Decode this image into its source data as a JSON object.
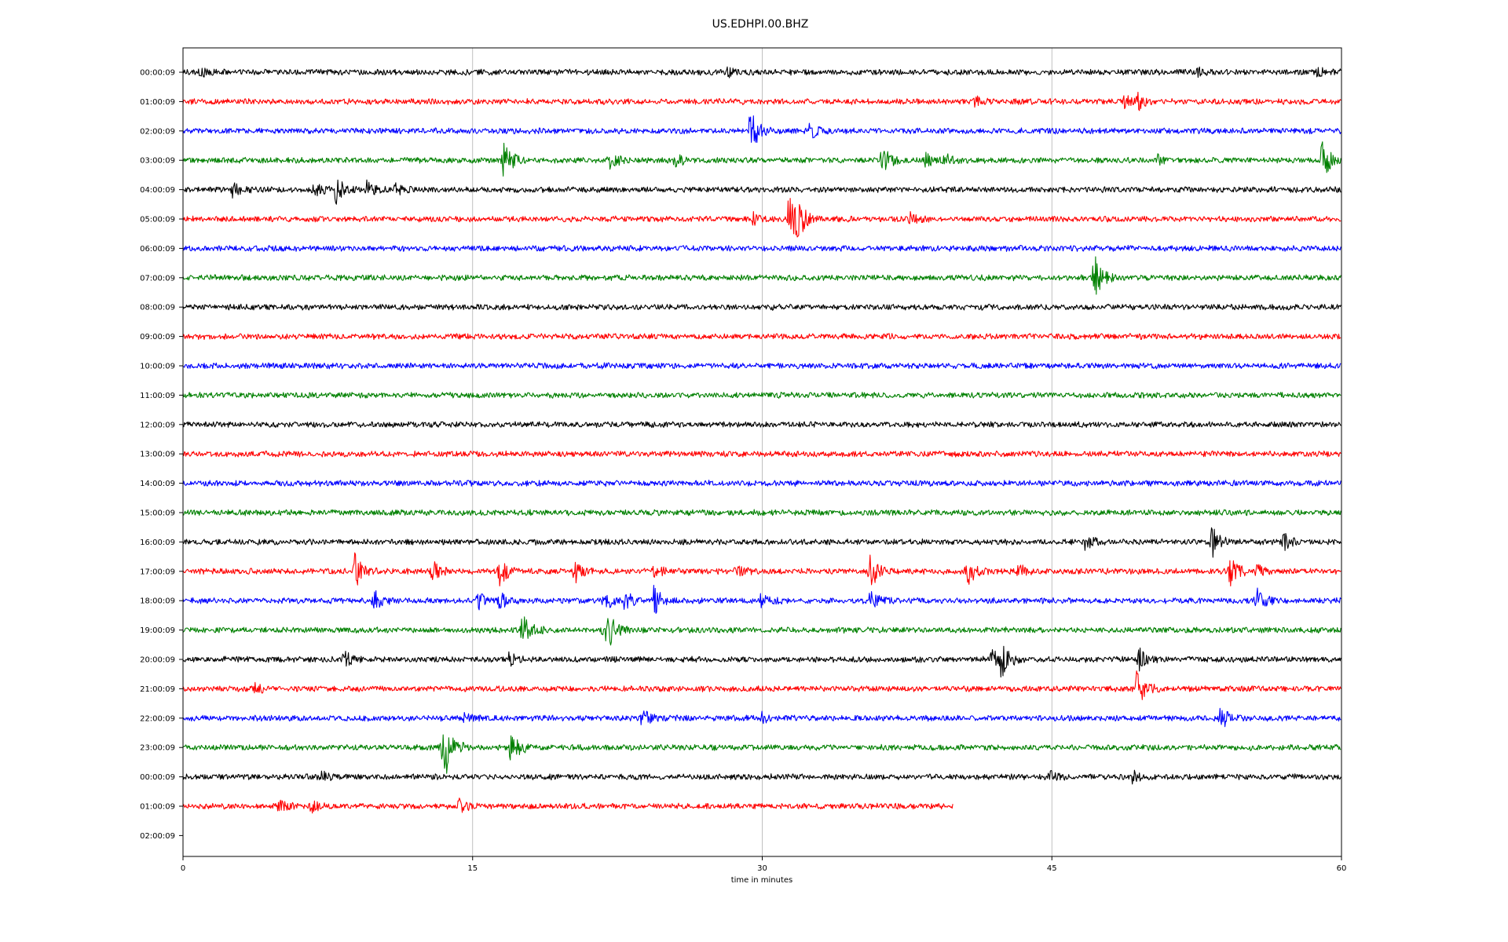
{
  "chart_data": {
    "type": "line",
    "title": "US.EDHPI.00.BHZ",
    "xlabel": "time in minutes",
    "ylabel": "",
    "xlim": [
      0,
      60
    ],
    "xticks": [
      0,
      15,
      30,
      45,
      60
    ],
    "vertical_grid": true,
    "colors": [
      "#000000",
      "#ff0000",
      "#0000ff",
      "#008000"
    ],
    "rows": [
      {
        "label": "00:00:09",
        "end": 60,
        "events": [
          [
            0.9,
            7
          ],
          [
            28.2,
            6
          ],
          [
            52.5,
            5
          ],
          [
            58.8,
            7
          ]
        ]
      },
      {
        "label": "01:00:09",
        "end": 60,
        "events": [
          [
            41.0,
            6
          ],
          [
            48.8,
            8
          ],
          [
            49.5,
            10
          ]
        ]
      },
      {
        "label": "02:00:09",
        "end": 60,
        "events": [
          [
            29.4,
            28
          ],
          [
            32.4,
            12
          ]
        ]
      },
      {
        "label": "03:00:09",
        "end": 60,
        "events": [
          [
            16.6,
            30
          ],
          [
            22.1,
            14
          ],
          [
            25.5,
            8
          ],
          [
            36.2,
            20
          ],
          [
            38.5,
            10
          ],
          [
            39.5,
            8
          ],
          [
            50.5,
            8
          ],
          [
            59.0,
            26
          ]
        ]
      },
      {
        "label": "04:00:09",
        "end": 60,
        "events": [
          [
            2.6,
            10
          ],
          [
            6.8,
            10
          ],
          [
            7.9,
            18
          ],
          [
            9.5,
            10
          ],
          [
            11.0,
            6
          ]
        ]
      },
      {
        "label": "05:00:09",
        "end": 60,
        "events": [
          [
            29.5,
            8
          ],
          [
            31.4,
            34
          ],
          [
            31.8,
            20
          ],
          [
            37.7,
            8
          ]
        ]
      },
      {
        "label": "06:00:09",
        "end": 60,
        "events": []
      },
      {
        "label": "07:00:09",
        "end": 60,
        "events": [
          [
            47.2,
            30
          ]
        ]
      },
      {
        "label": "08:00:09",
        "end": 60,
        "events": []
      },
      {
        "label": "09:00:09",
        "end": 60,
        "events": []
      },
      {
        "label": "10:00:09",
        "end": 60,
        "events": []
      },
      {
        "label": "11:00:09",
        "end": 60,
        "events": []
      },
      {
        "label": "12:00:09",
        "end": 60,
        "events": []
      },
      {
        "label": "13:00:09",
        "end": 60,
        "events": []
      },
      {
        "label": "14:00:09",
        "end": 60,
        "events": []
      },
      {
        "label": "15:00:09",
        "end": 60,
        "events": []
      },
      {
        "label": "16:00:09",
        "end": 60,
        "events": [
          [
            46.7,
            14
          ],
          [
            53.3,
            20
          ],
          [
            57.0,
            10
          ]
        ]
      },
      {
        "label": "17:00:09",
        "end": 60,
        "events": [
          [
            8.9,
            24
          ],
          [
            12.9,
            14
          ],
          [
            16.4,
            18
          ],
          [
            20.3,
            14
          ],
          [
            24.4,
            10
          ],
          [
            28.6,
            8
          ],
          [
            35.6,
            22
          ],
          [
            40.6,
            22
          ],
          [
            43.3,
            8
          ],
          [
            54.2,
            22
          ],
          [
            55.6,
            8
          ]
        ]
      },
      {
        "label": "18:00:09",
        "end": 60,
        "events": [
          [
            9.9,
            12
          ],
          [
            15.3,
            10
          ],
          [
            16.4,
            10
          ],
          [
            21.8,
            14
          ],
          [
            22.9,
            14
          ],
          [
            24.4,
            18
          ],
          [
            29.9,
            10
          ],
          [
            35.6,
            14
          ],
          [
            55.6,
            16
          ]
        ]
      },
      {
        "label": "19:00:09",
        "end": 60,
        "events": [
          [
            17.6,
            22
          ],
          [
            21.8,
            18
          ],
          [
            22.1,
            14
          ]
        ]
      },
      {
        "label": "20:00:09",
        "end": 60,
        "events": [
          [
            8.3,
            12
          ],
          [
            16.9,
            8
          ],
          [
            41.9,
            12
          ],
          [
            42.4,
            26
          ],
          [
            49.5,
            14
          ]
        ]
      },
      {
        "label": "21:00:09",
        "end": 60,
        "events": [
          [
            3.7,
            8
          ],
          [
            49.4,
            26
          ]
        ]
      },
      {
        "label": "22:00:09",
        "end": 60,
        "events": [
          [
            14.5,
            6
          ],
          [
            23.8,
            10
          ],
          [
            29.9,
            8
          ],
          [
            53.7,
            16
          ]
        ]
      },
      {
        "label": "23:00:09",
        "end": 60,
        "events": [
          [
            13.4,
            18
          ],
          [
            13.6,
            30
          ],
          [
            17.0,
            24
          ]
        ]
      },
      {
        "label": "00:00:09",
        "end": 60,
        "events": [
          [
            7.2,
            6
          ],
          [
            44.9,
            6
          ],
          [
            49.2,
            8
          ]
        ]
      },
      {
        "label": "01:00:09",
        "end": 39.9,
        "events": [
          [
            5.0,
            8
          ],
          [
            6.6,
            8
          ],
          [
            14.3,
            10
          ]
        ]
      },
      {
        "label": "02:00:09",
        "end": 0,
        "events": []
      }
    ]
  }
}
